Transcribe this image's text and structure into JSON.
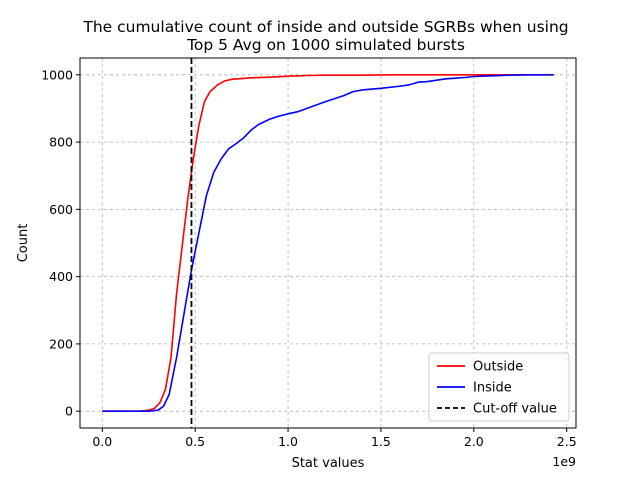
{
  "chart_data": {
    "type": "line",
    "title_lines": [
      "The cumulative count of inside and outside SGRBs when using",
      "Top 5 Avg on 1000 simulated bursts"
    ],
    "xlabel": "Stat values",
    "ylabel": "Count",
    "x_offset_label": "1e9",
    "x_scale_note": "x values in units of 1e9",
    "xlim": [
      -0.12,
      2.55
    ],
    "ylim": [
      -50,
      1050
    ],
    "xticks": [
      0.0,
      0.5,
      1.0,
      1.5,
      2.0,
      2.5
    ],
    "xtick_labels": [
      "0.0",
      "0.5",
      "1.0",
      "1.5",
      "2.0",
      "2.5"
    ],
    "yticks": [
      0,
      200,
      400,
      600,
      800,
      1000
    ],
    "ytick_labels": [
      "0",
      "200",
      "400",
      "600",
      "800",
      "1000"
    ],
    "grid": true,
    "legend_position": "lower-right",
    "series": [
      {
        "name": "Outside",
        "color": "#ff0000",
        "style": "solid",
        "points": [
          [
            0.0,
            0
          ],
          [
            0.05,
            0
          ],
          [
            0.1,
            0
          ],
          [
            0.15,
            0
          ],
          [
            0.2,
            0
          ],
          [
            0.25,
            3
          ],
          [
            0.28,
            8
          ],
          [
            0.31,
            25
          ],
          [
            0.34,
            65
          ],
          [
            0.37,
            160
          ],
          [
            0.4,
            350
          ],
          [
            0.43,
            490
          ],
          [
            0.46,
            630
          ],
          [
            0.49,
            750
          ],
          [
            0.52,
            850
          ],
          [
            0.55,
            920
          ],
          [
            0.58,
            950
          ],
          [
            0.62,
            970
          ],
          [
            0.66,
            982
          ],
          [
            0.7,
            987
          ],
          [
            0.75,
            989
          ],
          [
            0.8,
            991
          ],
          [
            0.9,
            993
          ],
          [
            1.0,
            996
          ],
          [
            1.1,
            998
          ],
          [
            1.2,
            999
          ],
          [
            1.4,
            999
          ],
          [
            1.6,
            1000
          ],
          [
            1.8,
            1000
          ],
          [
            2.0,
            1000
          ],
          [
            2.2,
            1000
          ],
          [
            2.43,
            1000
          ]
        ]
      },
      {
        "name": "Inside",
        "color": "#0000ff",
        "style": "solid",
        "points": [
          [
            0.0,
            0
          ],
          [
            0.1,
            0
          ],
          [
            0.2,
            0
          ],
          [
            0.25,
            0
          ],
          [
            0.3,
            3
          ],
          [
            0.33,
            15
          ],
          [
            0.36,
            50
          ],
          [
            0.4,
            160
          ],
          [
            0.44,
            290
          ],
          [
            0.48,
            420
          ],
          [
            0.52,
            530
          ],
          [
            0.56,
            640
          ],
          [
            0.6,
            710
          ],
          [
            0.64,
            750
          ],
          [
            0.68,
            780
          ],
          [
            0.72,
            795
          ],
          [
            0.76,
            812
          ],
          [
            0.8,
            835
          ],
          [
            0.84,
            852
          ],
          [
            0.9,
            868
          ],
          [
            0.95,
            877
          ],
          [
            1.0,
            884
          ],
          [
            1.05,
            890
          ],
          [
            1.1,
            900
          ],
          [
            1.2,
            920
          ],
          [
            1.3,
            938
          ],
          [
            1.35,
            950
          ],
          [
            1.4,
            955
          ],
          [
            1.5,
            960
          ],
          [
            1.6,
            966
          ],
          [
            1.65,
            970
          ],
          [
            1.7,
            978
          ],
          [
            1.75,
            980
          ],
          [
            1.8,
            984
          ],
          [
            1.85,
            988
          ],
          [
            1.9,
            990
          ],
          [
            1.95,
            992
          ],
          [
            2.0,
            995
          ],
          [
            2.1,
            997
          ],
          [
            2.2,
            999
          ],
          [
            2.3,
            1000
          ],
          [
            2.43,
            1000
          ]
        ]
      }
    ],
    "cutoff": {
      "name": "Cut-off value",
      "x": 0.48,
      "color": "#000000",
      "style": "dashed"
    }
  }
}
